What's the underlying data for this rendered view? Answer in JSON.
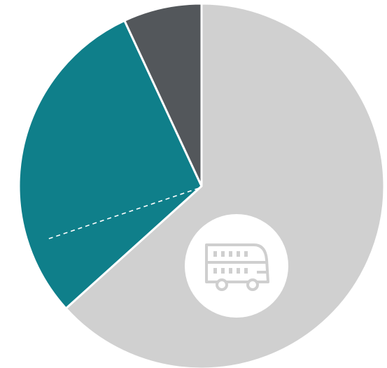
{
  "chart_data": {
    "type": "pie",
    "title": "",
    "start_angle_deg": 0,
    "direction": "clockwise",
    "slices": [
      {
        "value": 63.0,
        "color": "#d0d0d0"
      },
      {
        "value": 29.6,
        "color": "#0f7f8a"
      },
      {
        "value": 6.9,
        "color": "#53575b"
      }
    ],
    "divider_color": "#ffffff",
    "dashed_line": {
      "slice_index": 1,
      "angle_deg": 251,
      "color": "#ffffff"
    },
    "center_badge": {
      "icon": "double-decker-bus-icon",
      "background": "#ffffff",
      "icon_color": "#cfcfcf"
    }
  }
}
